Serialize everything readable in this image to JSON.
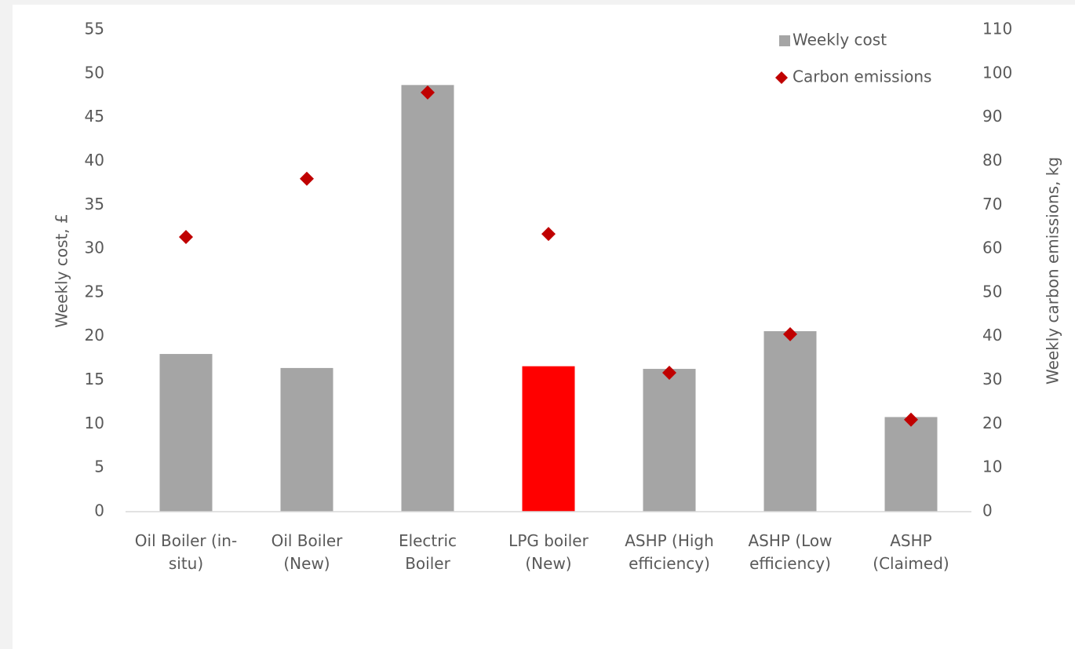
{
  "chart_data": {
    "type": "bar",
    "categories": [
      "Oil Boiler (in-\nsitu)",
      "Oil Boiler\n(New)",
      "Electric\nBoiler",
      "LPG boiler\n(New)",
      "ASHP (High\nefficiency)",
      "ASHP (Low\nefficiency)",
      "ASHP\n(Claimed)"
    ],
    "series": [
      {
        "name": "Weekly cost",
        "type": "bar",
        "color": "#a5a5a5",
        "colors": [
          "#a5a5a5",
          "#a5a5a5",
          "#a5a5a5",
          "#ff0000",
          "#a5a5a5",
          "#a5a5a5",
          "#a5a5a5"
        ],
        "values": [
          18.0,
          16.4,
          48.7,
          16.6,
          16.3,
          20.6,
          10.8
        ]
      },
      {
        "name": "Carbon emissions",
        "type": "scatter",
        "axis": "y2",
        "color": "#c00000",
        "values": [
          62.7,
          76.0,
          95.7,
          63.4,
          31.7,
          40.5,
          21.0
        ]
      }
    ],
    "ylabel": "Weekly cost, £",
    "y2label": "Weekly carbon emissions, kg",
    "ylim": [
      0,
      55
    ],
    "yticks": [
      0,
      5,
      10,
      15,
      20,
      25,
      30,
      35,
      40,
      45,
      50,
      55
    ],
    "y2lim": [
      0,
      110
    ],
    "y2ticks": [
      0,
      10,
      20,
      30,
      40,
      50,
      60,
      70,
      80,
      90,
      100,
      110
    ],
    "legend": "top-right"
  }
}
